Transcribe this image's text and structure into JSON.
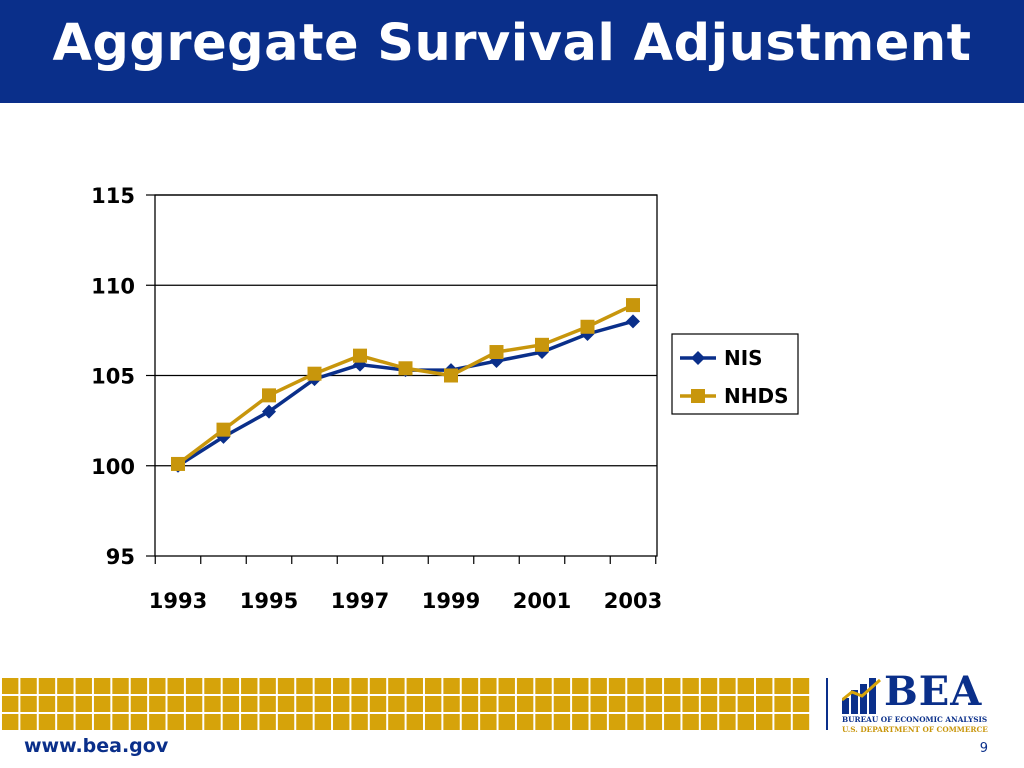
{
  "slide": {
    "title": "Aggregate Survival Adjustment",
    "url": "www.bea.gov",
    "page_number": "9"
  },
  "logo": {
    "wordmark": "BEA",
    "line1": "BUREAU OF ECONOMIC ANALYSIS",
    "line2": "U.S. DEPARTMENT OF COMMERCE"
  },
  "colors": {
    "title_bar": "#0a2f8a",
    "accent_gold": "#d6a30a",
    "nis": "#0a2f8a",
    "nhds": "#c8960c"
  },
  "chart_data": {
    "type": "line",
    "title": "",
    "xlabel": "",
    "ylabel": "",
    "x": [
      1993,
      1994,
      1995,
      1996,
      1997,
      1998,
      1999,
      2000,
      2001,
      2002,
      2003
    ],
    "x_tick_labels": [
      "1993",
      "1995",
      "1997",
      "1999",
      "2001",
      "2003"
    ],
    "y_ticks": [
      "95",
      "100",
      "105",
      "110",
      "115"
    ],
    "ylim": [
      95,
      115
    ],
    "grid": "horizontal major gridlines",
    "legend_position": "right",
    "series": [
      {
        "name": "NIS",
        "marker": "diamond",
        "color": "#0a2f8a",
        "values": [
          100.0,
          101.6,
          103.0,
          104.8,
          105.6,
          105.3,
          105.3,
          105.8,
          106.3,
          107.3,
          108.0
        ]
      },
      {
        "name": "NHDS",
        "marker": "square",
        "color": "#c8960c",
        "values": [
          100.1,
          102.0,
          103.9,
          105.1,
          106.1,
          105.4,
          105.0,
          106.3,
          106.7,
          107.7,
          108.9
        ]
      }
    ]
  }
}
